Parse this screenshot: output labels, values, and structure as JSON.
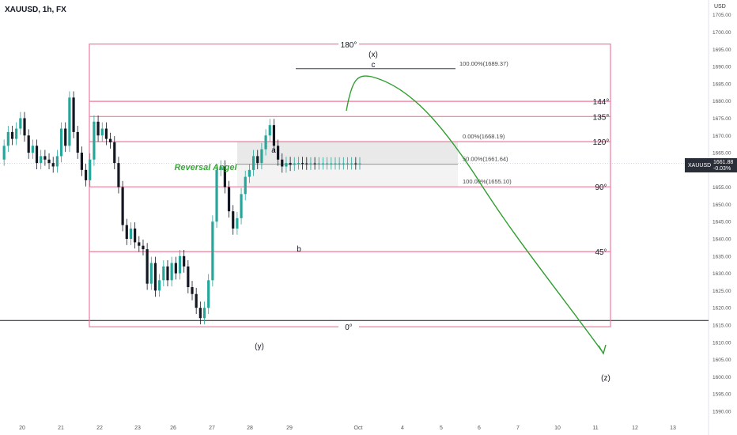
{
  "header": {
    "title": "XAUUSD, 1h, FX",
    "currency": "USD"
  },
  "price_tag": {
    "symbol": "XAUUSD",
    "price": "1661.88",
    "change": "-0.03%"
  },
  "chart_data": {
    "type": "line",
    "title": "XAUUSD, 1h, FX",
    "y_axis_ticks": [
      1590,
      1595,
      1600,
      1605,
      1610,
      1615,
      1620,
      1625,
      1630,
      1635,
      1640,
      1645,
      1650,
      1655,
      1660,
      1665,
      1670,
      1675,
      1680,
      1685,
      1690,
      1695,
      1700,
      1705
    ],
    "y_axis_ticks_labels": [
      "1590.00",
      "1595.00",
      "1600.00",
      "1605.00",
      "1610.00",
      "1615.00",
      "1620.00",
      "1625.00",
      "1630.00",
      "1635.00",
      "1640.00",
      "1645.00",
      "1650.00",
      "1655.00",
      "1660.00",
      "1665.00",
      "1670.00",
      "1675.00",
      "1680.00",
      "1685.00",
      "1690.00",
      "1695.00",
      "1700.00",
      "1705.00"
    ],
    "ylim": [
      1587,
      1707
    ],
    "x_axis_ticks": [
      "20",
      "21",
      "22",
      "23",
      "26",
      "27",
      "28",
      "29",
      "Oct",
      "4",
      "5",
      "6",
      "7",
      "10",
      "11",
      "12",
      "13"
    ],
    "series": [
      {
        "name": "XAUUSD",
        "x": [
          0,
          0.6,
          1.2,
          1.8,
          2.4,
          3,
          3.6,
          4.2,
          4.8,
          5.4,
          6,
          6.6,
          7.2,
          7.8,
          8.4,
          9,
          9.6,
          10.2,
          10.8,
          11.4,
          12,
          12.6,
          13.2,
          13.8,
          14.4,
          15,
          15.6,
          16.2,
          16.8,
          17.4,
          18,
          18.6,
          19.2,
          19.8,
          20.4,
          21,
          21.6,
          22.2,
          22.8,
          23.4,
          24,
          24.6,
          25.2,
          25.8,
          26.4,
          27,
          27.6,
          28.2,
          28.8,
          29.4,
          30,
          30.6,
          31.2,
          31.8,
          32.4,
          33,
          33.6,
          34.2,
          34.8,
          35.4,
          36,
          36.6,
          37.2,
          37.8,
          38.4,
          39,
          39.6,
          40.2,
          40.8,
          41.4,
          42,
          42.6,
          43.2,
          43.8,
          44.4,
          45,
          45.6,
          46.2,
          46.8,
          47.4,
          48,
          48.6,
          49.2,
          49.8,
          50.4,
          51,
          51.6,
          52.2,
          52.8
        ],
        "close": [
          1663,
          1667,
          1671,
          1669,
          1672,
          1675,
          1670,
          1665,
          1667,
          1662,
          1664,
          1663,
          1662,
          1661,
          1664,
          1672,
          1667,
          1681,
          1671,
          1665,
          1660,
          1657,
          1663,
          1674,
          1670,
          1672,
          1669,
          1668,
          1662,
          1655,
          1644,
          1640,
          1643,
          1639,
          1638,
          1637,
          1627,
          1633,
          1625,
          1628,
          1632,
          1628,
          1633,
          1630,
          1635,
          1632,
          1626,
          1624,
          1620,
          1617,
          1620,
          1628,
          1645,
          1660,
          1661,
          1655,
          1648,
          1643,
          1646,
          1653,
          1658,
          1660,
          1664,
          1662,
          1666,
          1670,
          1673,
          1667,
          1663,
          1661,
          1662,
          1661.5,
          1661.9,
          1662,
          1661.9,
          1661.8,
          1661.9,
          1661.88,
          1661.9,
          1661.9,
          1661.9,
          1661.9,
          1661.9,
          1661.9,
          1661.9,
          1661.9,
          1661.9,
          1661.88,
          1661.88
        ]
      }
    ],
    "fib_levels": [
      {
        "label": "0.00%(1668.19)",
        "value": 1668.19
      },
      {
        "label": "50.00%(1661.64)",
        "value": 1661.64
      },
      {
        "label": "100.00%(1655.10)",
        "value": 1655.1
      },
      {
        "label": "100.00%(1689.37)",
        "value": 1689.37
      }
    ],
    "angle_lines": [
      {
        "label": "180°",
        "value": 1696.5
      },
      {
        "label": "144°",
        "value": 1679.9
      },
      {
        "label": "135°",
        "value": 1675.5
      },
      {
        "label": "120°",
        "value": 1668.2
      },
      {
        "label": "90°",
        "value": 1655.1
      },
      {
        "label": "45°",
        "value": 1636.3
      },
      {
        "label": "0°",
        "value": 1614.5
      }
    ],
    "horizontal_line": {
      "value": 1616.3
    },
    "annotations": [
      {
        "text": "(x)"
      },
      {
        "text": "c"
      },
      {
        "text": "a"
      },
      {
        "text": "b"
      },
      {
        "text": "(y)"
      },
      {
        "text": "(z)"
      },
      {
        "text": "Reversal Angel"
      }
    ],
    "grid": false,
    "colors": {
      "box": "#f07a9c",
      "projection": "#2f9e2f",
      "candle_up": "#26a69a",
      "candle_down": "#131722",
      "fib_fill": "#e9e9e9",
      "label_green": "#3da53d"
    }
  }
}
